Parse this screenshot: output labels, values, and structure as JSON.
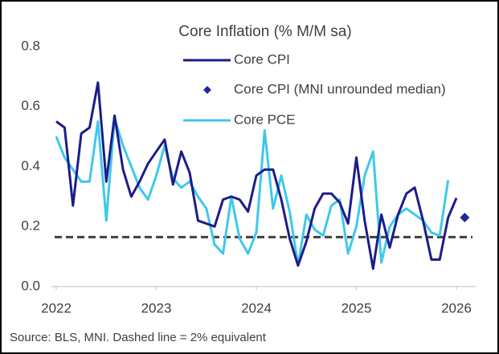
{
  "chart_data": {
    "type": "line",
    "title": "Core Inflation (% M/M sa)",
    "source": "Source: BLS, MNI. Dashed line = 2% equivalent",
    "x": [
      2022.0,
      2022.083,
      2022.167,
      2022.25,
      2022.333,
      2022.417,
      2022.5,
      2022.583,
      2022.667,
      2022.75,
      2022.833,
      2022.917,
      2023.0,
      2023.083,
      2023.167,
      2023.25,
      2023.333,
      2023.417,
      2023.5,
      2023.583,
      2023.667,
      2023.75,
      2023.833,
      2023.917,
      2024.0,
      2024.083,
      2024.167,
      2024.25,
      2024.333,
      2024.417,
      2024.5,
      2024.583,
      2024.667,
      2024.75,
      2024.833,
      2024.917,
      2025.0,
      2025.083,
      2025.167,
      2025.25,
      2025.333,
      2025.417,
      2025.5,
      2025.583,
      2025.667,
      2025.75,
      2025.833,
      2025.917,
      2026.0,
      2026.083
    ],
    "series": [
      {
        "name": "Core CPI",
        "color": "#1c1c8a",
        "marker": "line",
        "values": [
          0.55,
          0.53,
          0.27,
          0.51,
          0.53,
          0.68,
          0.35,
          0.57,
          0.39,
          0.3,
          0.35,
          0.41,
          0.45,
          0.49,
          0.34,
          0.45,
          0.38,
          0.22,
          0.21,
          0.2,
          0.29,
          0.3,
          0.29,
          0.25,
          0.37,
          0.39,
          0.39,
          0.29,
          0.16,
          0.07,
          0.15,
          0.26,
          0.31,
          0.31,
          0.28,
          0.21,
          0.43,
          0.22,
          0.06,
          0.24,
          0.13,
          0.24,
          0.31,
          0.33,
          0.22,
          0.09,
          0.09,
          0.23,
          0.295,
          null
        ]
      },
      {
        "name": "Core CPI (MNI unrounded median)",
        "color": "#1f2a9a",
        "marker": "diamond",
        "values": [
          null,
          null,
          null,
          null,
          null,
          null,
          null,
          null,
          null,
          null,
          null,
          null,
          null,
          null,
          null,
          null,
          null,
          null,
          null,
          null,
          null,
          null,
          null,
          null,
          null,
          null,
          null,
          null,
          null,
          null,
          null,
          null,
          null,
          null,
          null,
          null,
          null,
          null,
          null,
          null,
          null,
          null,
          null,
          null,
          null,
          null,
          null,
          null,
          null,
          0.23
        ]
      },
      {
        "name": "Core PCE",
        "color": "#3fc8ea",
        "marker": "line",
        "values": [
          0.5,
          0.43,
          0.39,
          0.35,
          0.35,
          0.55,
          0.22,
          0.56,
          0.47,
          0.4,
          0.33,
          0.29,
          0.37,
          0.47,
          0.36,
          0.33,
          0.35,
          0.3,
          0.26,
          0.14,
          0.11,
          0.3,
          0.16,
          0.11,
          0.18,
          0.52,
          0.26,
          0.37,
          0.25,
          0.07,
          0.24,
          0.19,
          0.17,
          0.27,
          0.29,
          0.11,
          0.2,
          0.37,
          0.45,
          0.08,
          0.2,
          0.24,
          0.26,
          0.24,
          0.22,
          0.18,
          0.17,
          0.355,
          null,
          null
        ]
      }
    ],
    "reference_line": 0.165,
    "xlim": [
      2021.95,
      2026.2
    ],
    "xticks": [
      2022,
      2023,
      2024,
      2025,
      2026
    ],
    "ylim": [
      0,
      0.85
    ],
    "yticks": [
      {
        "value": 0,
        "label": "0.0"
      },
      0.2,
      0.4,
      0.6,
      0.8
    ],
    "grid": false,
    "legend": "top"
  }
}
